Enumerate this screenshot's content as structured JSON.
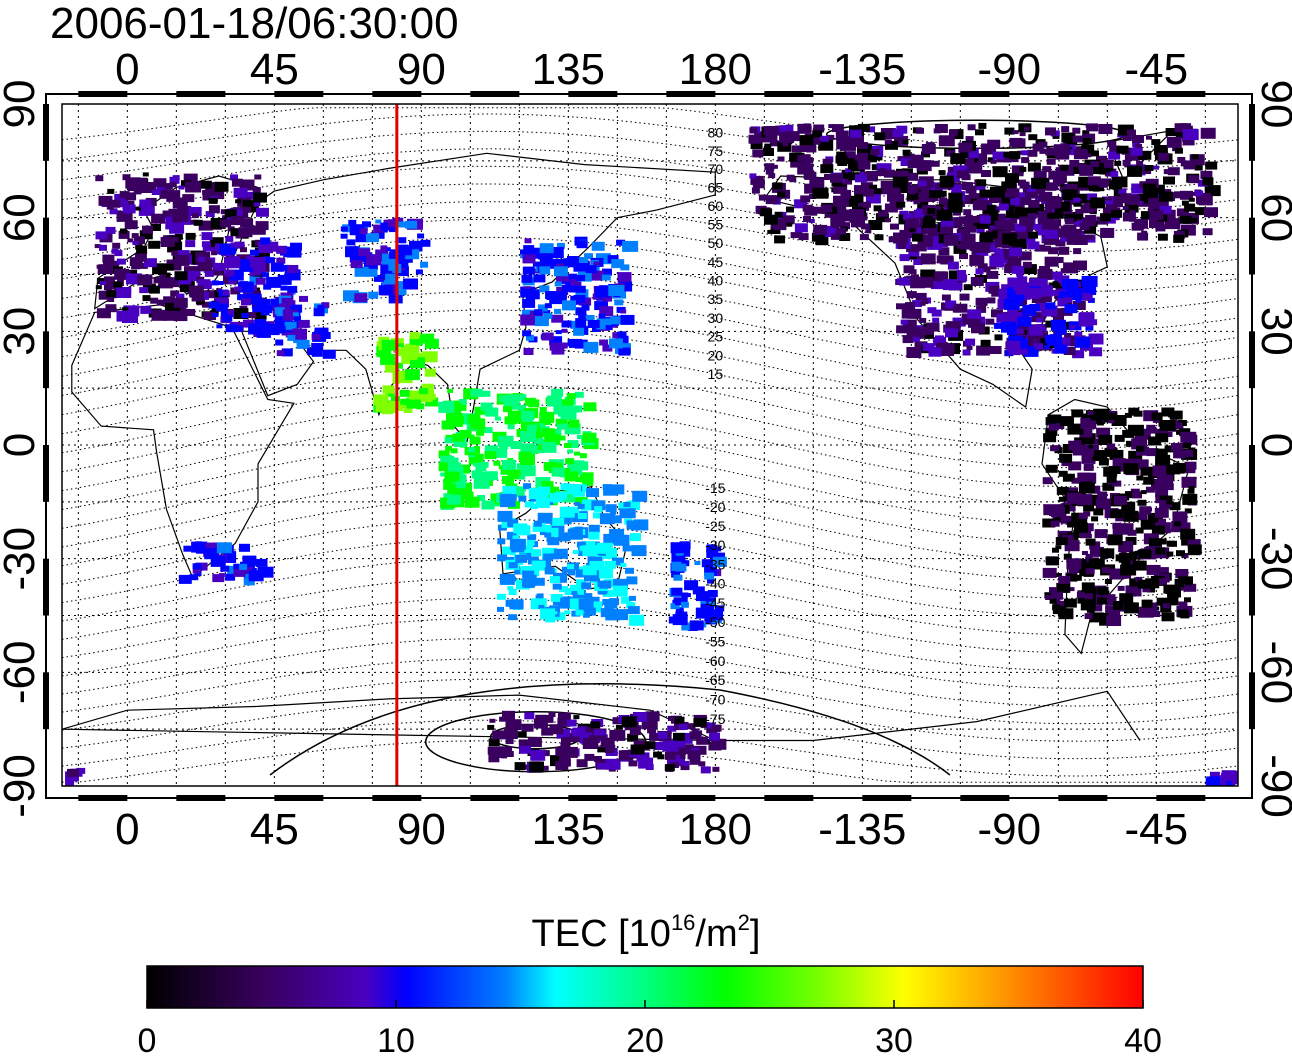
{
  "title": "2006-01-18/06:30:00",
  "map": {
    "x_ticks": [
      "0",
      "45",
      "90",
      "135",
      "180",
      "-135",
      "-90",
      "-45"
    ],
    "y_ticks": [
      "90",
      "60",
      "30",
      "0",
      "-30",
      "-60",
      "-90"
    ],
    "red_line_longitude": 82.5,
    "magnetic_latitude_labels": [
      "80",
      "75",
      "70",
      "65",
      "60",
      "55",
      "50",
      "45",
      "40",
      "35",
      "30",
      "25",
      "20",
      "15",
      "-15",
      "-20",
      "-25",
      "-30",
      "-35",
      "-40",
      "-45",
      "-50",
      "-55",
      "-60",
      "-65",
      "-70",
      "-75"
    ]
  },
  "colorbar": {
    "label_main": "TEC  [10",
    "label_sup1": "16",
    "label_mid": "/m",
    "label_sup2": "2",
    "label_end": "]",
    "ticks": [
      "0",
      "10",
      "20",
      "30",
      "40"
    ],
    "range": [
      0,
      40
    ],
    "colors": [
      "#000000",
      "#3a0060",
      "#4a00c0",
      "#0000ff",
      "#0080ff",
      "#00ffff",
      "#00ff80",
      "#00ff00",
      "#80ff00",
      "#ffff00",
      "#ff8000",
      "#ff0000"
    ]
  },
  "tec_patches": [
    {
      "region": "europe",
      "lon": [
        -10,
        40
      ],
      "lat": [
        35,
        72
      ],
      "value": 4
    },
    {
      "region": "europe-east",
      "lon": [
        25,
        50
      ],
      "lat": [
        30,
        55
      ],
      "value": 10
    },
    {
      "region": "middle-east",
      "lon": [
        45,
        60
      ],
      "lat": [
        25,
        40
      ],
      "value": 11
    },
    {
      "region": "central-asia",
      "lon": [
        65,
        90
      ],
      "lat": [
        40,
        60
      ],
      "value": 11
    },
    {
      "region": "india",
      "lon": [
        75,
        92
      ],
      "lat": [
        10,
        30
      ],
      "value": 28
    },
    {
      "region": "east-asia",
      "lon": [
        120,
        152
      ],
      "lat": [
        25,
        55
      ],
      "value": 11
    },
    {
      "region": "se-asia",
      "lon": [
        95,
        140
      ],
      "lat": [
        -15,
        15
      ],
      "value": 24
    },
    {
      "region": "australia",
      "lon": [
        113,
        155
      ],
      "lat": [
        -45,
        -10
      ],
      "value": 16
    },
    {
      "region": "new-zealand",
      "lon": [
        165,
        180
      ],
      "lat": [
        -48,
        -25
      ],
      "value": 12
    },
    {
      "region": "north-america",
      "lon": [
        -125,
        -70
      ],
      "lat": [
        25,
        70
      ],
      "value": 4
    },
    {
      "region": "north-america-east",
      "lon": [
        -95,
        -65
      ],
      "lat": [
        25,
        45
      ],
      "value": 9
    },
    {
      "region": "arctic",
      "lon": [
        -170,
        -30
      ],
      "lat": [
        55,
        85
      ],
      "value": 3
    },
    {
      "region": "south-america",
      "lon": [
        -80,
        -35
      ],
      "lat": [
        -45,
        10
      ],
      "value": 2
    },
    {
      "region": "antarctic",
      "lon": [
        -30,
        -15
      ],
      "lat": [
        -90,
        -85
      ],
      "value": 8
    },
    {
      "region": "antarctic-east",
      "lon": [
        110,
        180
      ],
      "lat": [
        -85,
        -70
      ],
      "value": 4
    },
    {
      "region": "africa-south",
      "lon": [
        15,
        40
      ],
      "lat": [
        -35,
        -25
      ],
      "value": 11
    }
  ]
}
